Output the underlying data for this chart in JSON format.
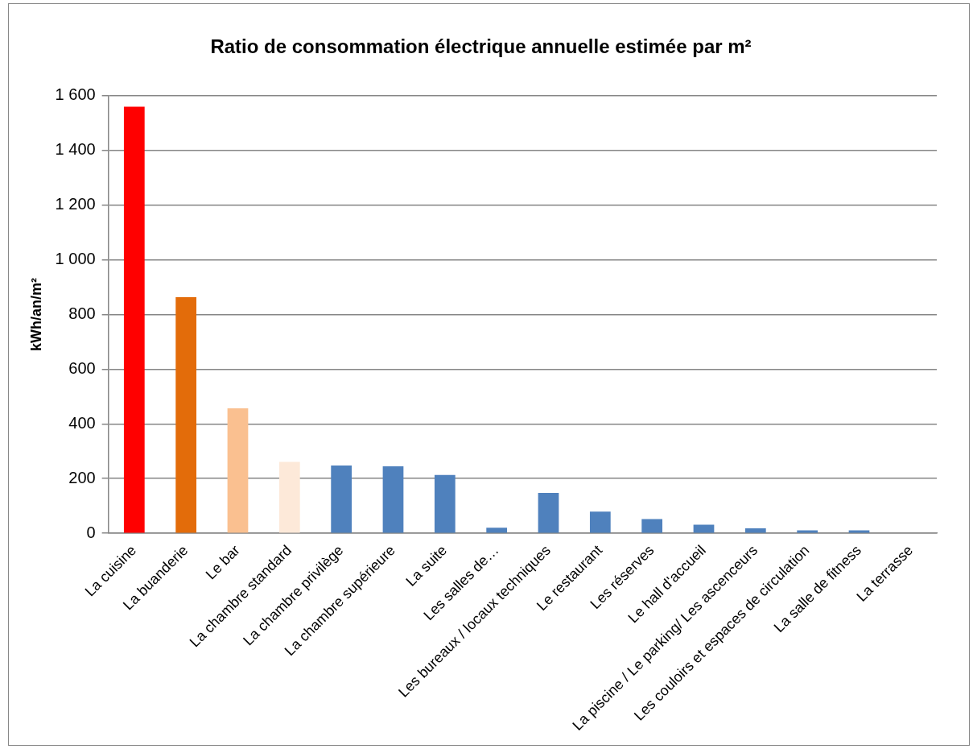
{
  "chart_data": {
    "type": "bar",
    "title": "Ratio de consommation électrique annuelle estimée par m²",
    "ylabel": "kWh/an/m²",
    "categories": [
      "La cuisine",
      "La buanderie",
      "Le bar",
      "La chambre standard",
      "La chambre privilège",
      "La chambre supérieure",
      "La suite",
      "Les salles de…",
      "Les bureaux / locaux techniques",
      "Le restaurant",
      "Les réserves",
      "Le hall d'accueil",
      "La piscine / Le parking/ Les ascenceurs",
      "Les couloirs et espaces de circulation",
      "La salle de fitness",
      "La terrasse"
    ],
    "values": [
      1560,
      863,
      457,
      261,
      248,
      245,
      213,
      20,
      148,
      79,
      52,
      31,
      18,
      11,
      11,
      2
    ],
    "colors": [
      "#ff0000",
      "#e36c0a",
      "#fac090",
      "#fde9d9",
      "#4f81bd",
      "#4f81bd",
      "#4f81bd",
      "#4f81bd",
      "#4f81bd",
      "#4f81bd",
      "#4f81bd",
      "#4f81bd",
      "#4f81bd",
      "#4f81bd",
      "#4f81bd",
      "#4f81bd"
    ],
    "ylim": [
      0,
      1600
    ],
    "yticks": [
      0,
      200,
      400,
      600,
      800,
      {
        "value": 1000,
        "label": "1 000"
      },
      {
        "value": 1200,
        "label": "1 200"
      },
      {
        "value": 1400,
        "label": "1 400"
      },
      {
        "value": 1600,
        "label": "1 600"
      }
    ],
    "grid": "y",
    "legend": false
  }
}
